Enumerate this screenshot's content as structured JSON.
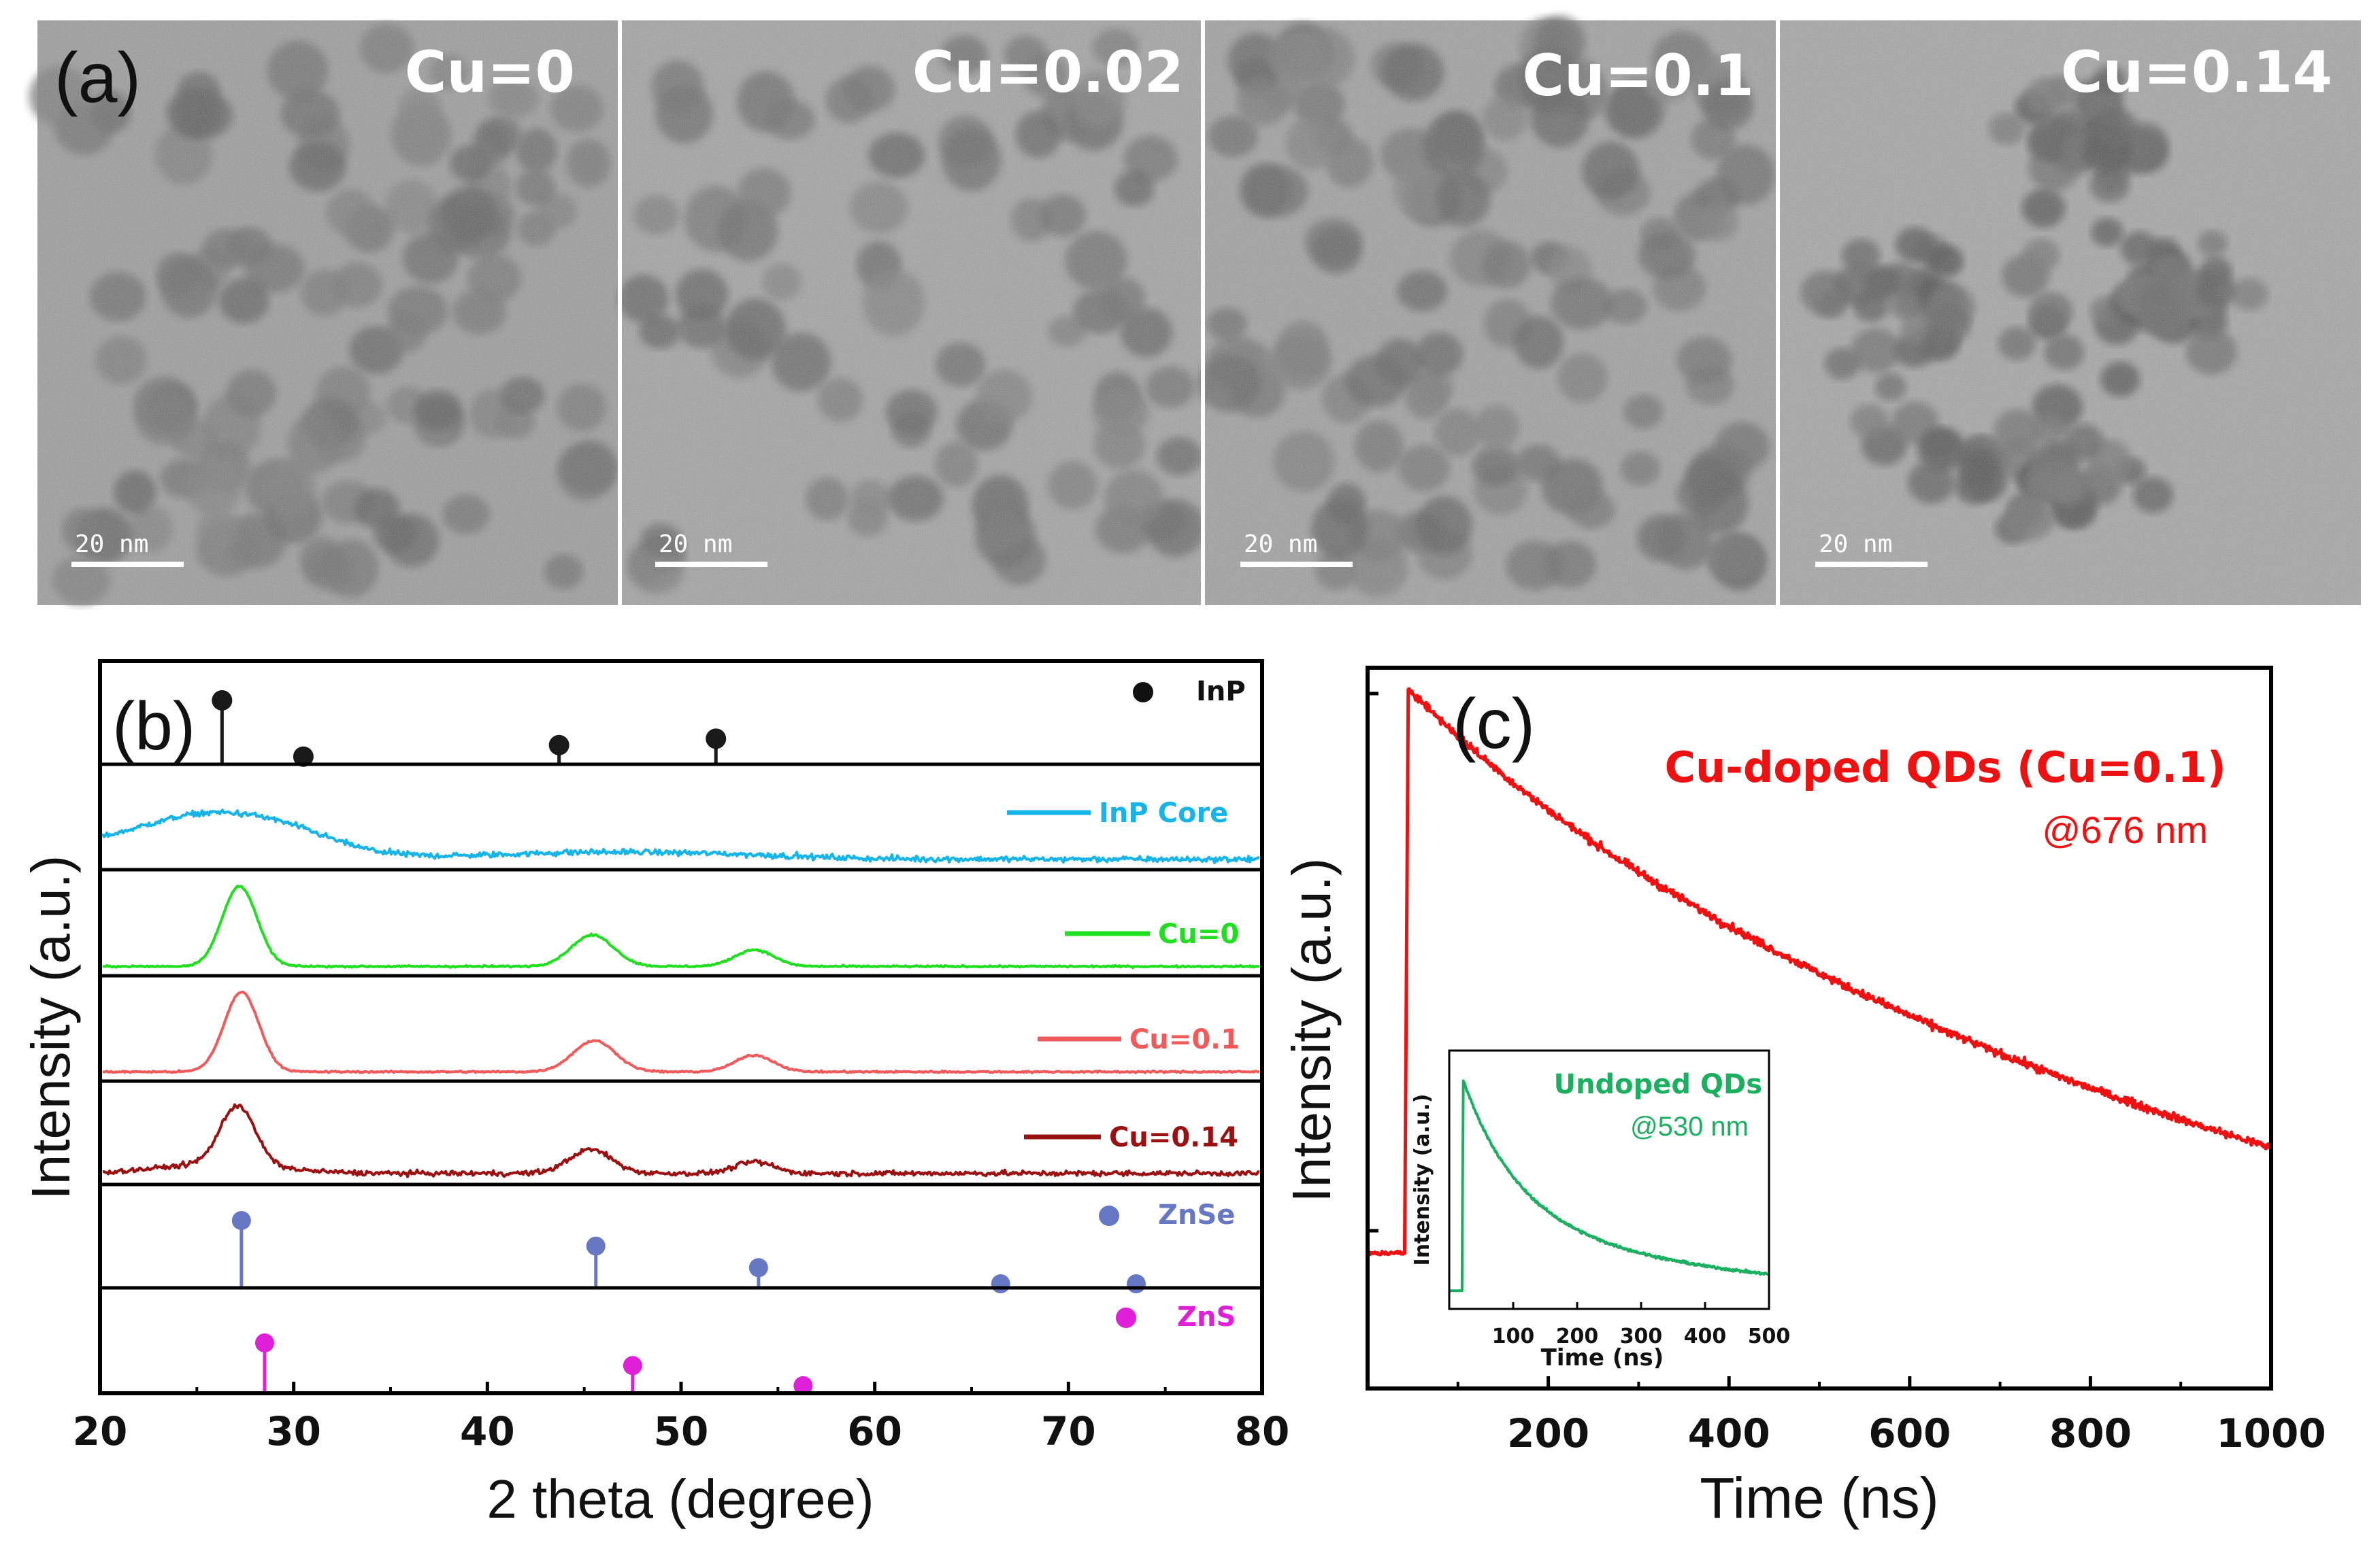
{
  "panel_a": {
    "label": "(a)",
    "images": [
      {
        "label": "Cu=0",
        "scale_bar": "20  nm"
      },
      {
        "label": "Cu=0.02",
        "scale_bar": "20  nm"
      },
      {
        "label": "Cu=0.1",
        "scale_bar": "20  nm"
      },
      {
        "label": "Cu=0.14",
        "scale_bar": "20  nm"
      }
    ]
  },
  "chart_data": [
    {
      "type": "line",
      "panel_label": "(b)",
      "xlabel": "2 theta (degree)",
      "ylabel": "Intensity (a.u.)",
      "xlim": [
        20,
        80
      ],
      "xticks": [
        20,
        30,
        40,
        50,
        60,
        70,
        80
      ],
      "xtick_labels": [
        "20",
        "30",
        "40",
        "50",
        "60",
        "70",
        "80"
      ],
      "reference_InP": {
        "name": "InP",
        "color": "#1a1a1a",
        "peaks": [
          {
            "x": 26.3,
            "h": 1.0
          },
          {
            "x": 30.5,
            "h": 0.12
          },
          {
            "x": 43.7,
            "h": 0.3
          },
          {
            "x": 51.8,
            "h": 0.4
          }
        ]
      },
      "series": [
        {
          "name": "InP Core",
          "color": "#17b4e8",
          "peaks": [
            {
              "x": 25.5,
              "h": 0.38,
              "w": 3.6
            },
            {
              "x": 30,
              "h": 0.12,
              "w": 2.5
            },
            {
              "x": 45,
              "h": 0.05,
              "w": 4
            },
            {
              "x": 52,
              "h": 0.04,
              "w": 4
            }
          ],
          "baseline": 0.05,
          "noise": 0.05
        },
        {
          "name": "Cu=0",
          "color": "#1fe01f",
          "peaks": [
            {
              "x": 27.1,
              "h": 0.82,
              "w": 0.9
            },
            {
              "x": 45.4,
              "h": 0.32,
              "w": 1.1
            },
            {
              "x": 53.8,
              "h": 0.17,
              "w": 1.0
            }
          ],
          "baseline": 0.04,
          "noise": 0.015
        },
        {
          "name": "Cu=0.1",
          "color": "#f05a5a",
          "peaks": [
            {
              "x": 27.2,
              "h": 0.82,
              "w": 0.9
            },
            {
              "x": 45.5,
              "h": 0.32,
              "w": 1.1
            },
            {
              "x": 53.8,
              "h": 0.17,
              "w": 1.0
            }
          ],
          "baseline": 0.04,
          "noise": 0.015
        },
        {
          "name": "Cu=0.14",
          "color": "#9b1010",
          "peaks": [
            {
              "x": 27.0,
              "h": 0.62,
              "w": 0.9
            },
            {
              "x": 45.3,
              "h": 0.25,
              "w": 1.1
            },
            {
              "x": 53.8,
              "h": 0.12,
              "w": 1.0
            },
            {
              "x": 26,
              "h": 0.1,
              "w": 3
            }
          ],
          "baseline": 0.06,
          "noise": 0.045
        }
      ],
      "reference_ZnSe": {
        "name": "ZnSe",
        "color": "#6677c4",
        "peaks": [
          {
            "x": 27.3,
            "h": 1.0
          },
          {
            "x": 45.6,
            "h": 0.62
          },
          {
            "x": 54.0,
            "h": 0.3
          },
          {
            "x": 66.5,
            "h": 0.06
          },
          {
            "x": 73.5,
            "h": 0.06
          }
        ]
      },
      "reference_ZnS": {
        "name": "ZnS",
        "color": "#e020d8",
        "peaks": [
          {
            "x": 28.5,
            "h": 1.0
          },
          {
            "x": 47.5,
            "h": 0.55
          },
          {
            "x": 56.3,
            "h": 0.15
          }
        ]
      }
    },
    {
      "type": "line",
      "panel_label": "(c)",
      "xlabel": "Time (ns)",
      "ylabel": "Intensity (a.u.)",
      "xlim": [
        0,
        1000
      ],
      "xticks": [
        200,
        400,
        600,
        800,
        1000
      ],
      "xtick_labels": [
        "200",
        "400",
        "600",
        "800",
        "1000"
      ],
      "series": [
        {
          "name": "Cu-doped QDs (Cu=0.1)",
          "sublabel": "@676 nm",
          "color": "#ee1111",
          "peak_time": 45,
          "pre_level": 0.02,
          "tau1": 1100,
          "tau2": 160,
          "a2": 0.08,
          "end_level": 0.06
        }
      ],
      "inset": {
        "title": "Undoped QDs",
        "sublabel": "@530 nm",
        "color": "#1ab060",
        "xlabel": "Time (ns)",
        "ylabel": "Intensity (a.u.)",
        "xlim": [
          0,
          500
        ],
        "xticks": [
          100,
          200,
          300,
          400,
          500
        ],
        "xtick_labels": [
          "100",
          "200",
          "300",
          "400",
          "500"
        ],
        "peak_time": 22,
        "tau1": 85,
        "a1": 0.62,
        "tau2": 400,
        "a2": 0.38
      }
    }
  ]
}
